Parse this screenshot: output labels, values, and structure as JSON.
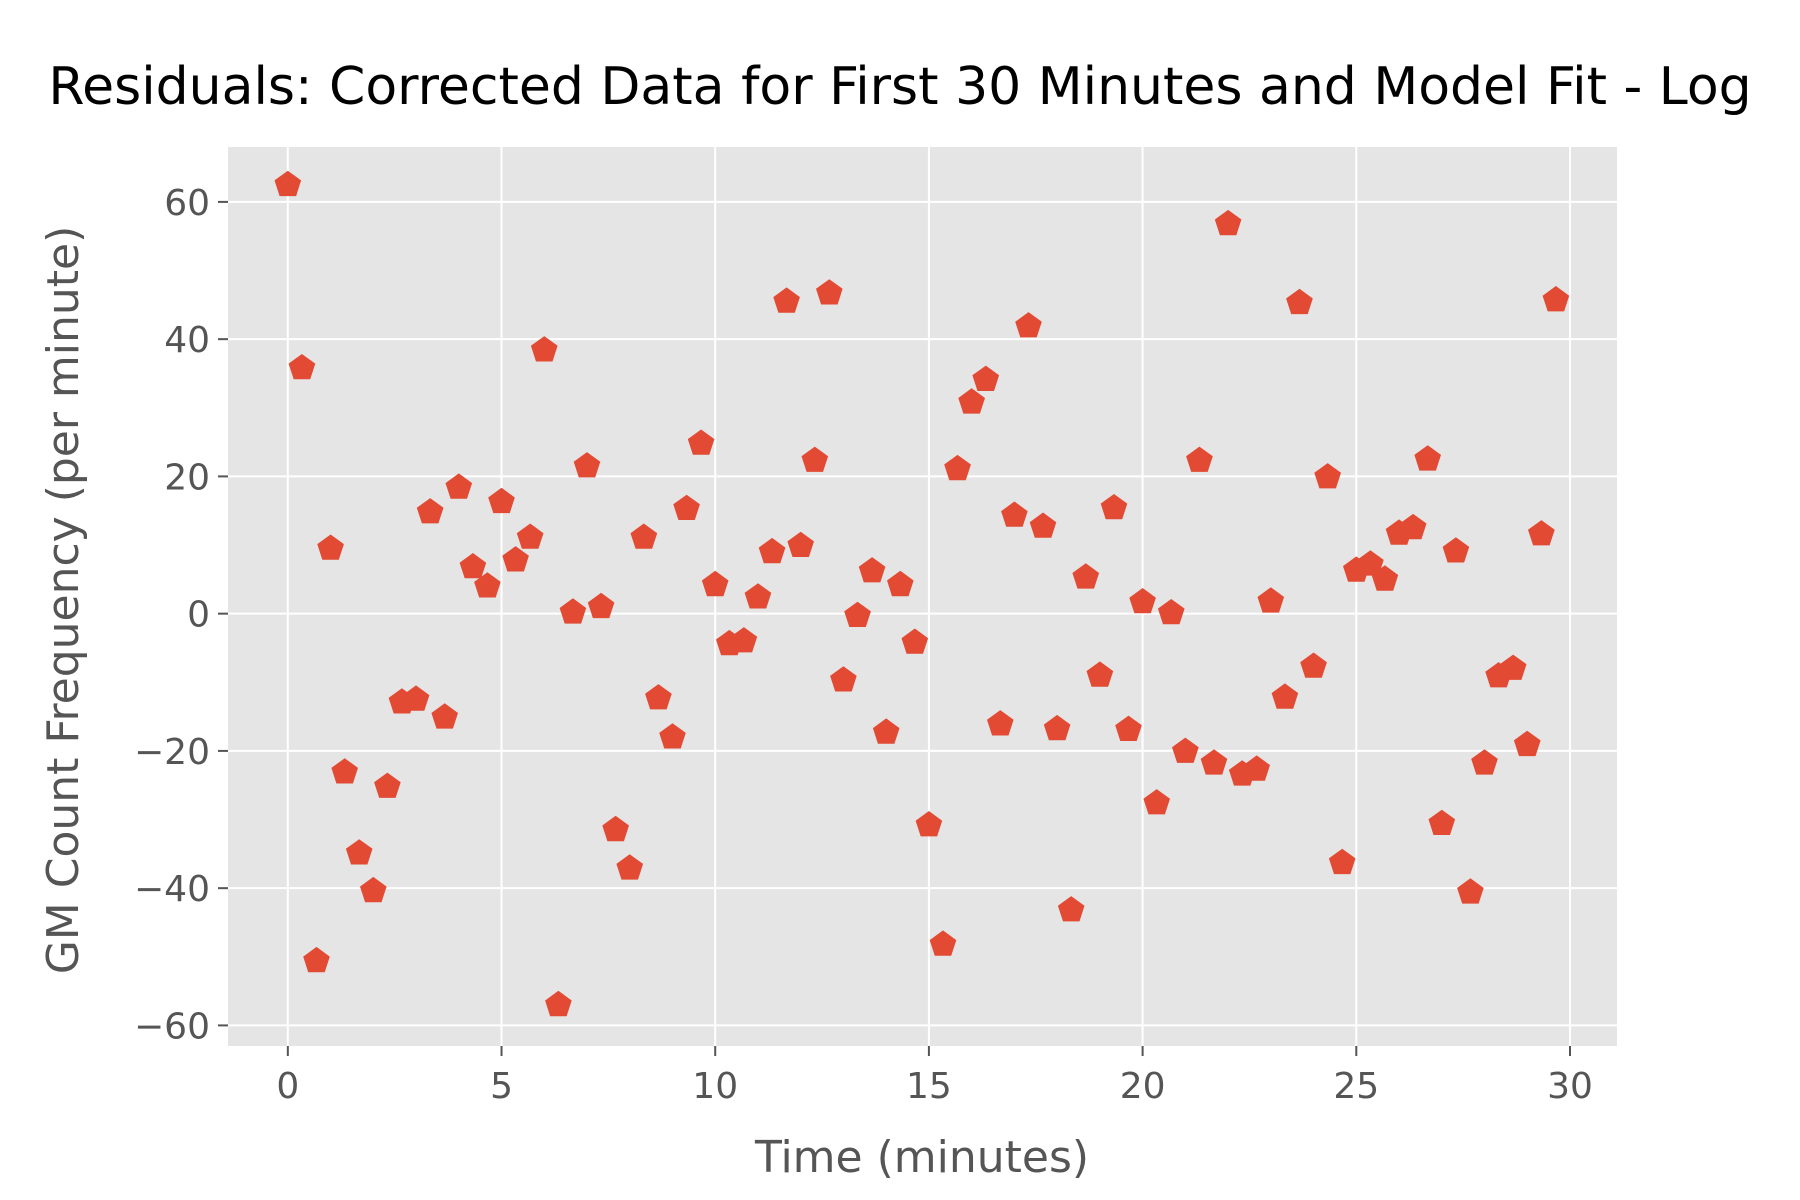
{
  "chart_data": {
    "type": "scatter",
    "title": "Residuals: Corrected Data for First 30 Minutes and Model Fit - Log",
    "xlabel": "Time (minutes)",
    "ylabel": "GM Count Frequency (per minute)",
    "xlim": [
      -1.4,
      31.1
    ],
    "ylim": [
      -63,
      68
    ],
    "x_ticks": [
      0,
      5,
      10,
      15,
      20,
      25,
      30
    ],
    "x_tick_labels": [
      "0",
      "5",
      "10",
      "15",
      "20",
      "25",
      "30"
    ],
    "y_ticks": [
      -60,
      -40,
      -20,
      0,
      20,
      40,
      60
    ],
    "y_tick_labels": [
      "−60",
      "−40",
      "−20",
      "0",
      "20",
      "40",
      "60"
    ],
    "grid": true,
    "marker": "pentagon",
    "colors": {
      "marker": "#E24A33",
      "plot_background": "#E5E5E5",
      "grid": "#FFFFFF",
      "figure_background": "#FFFFFF"
    },
    "points": [
      [
        0.0,
        62.5
      ],
      [
        0.33,
        35.8
      ],
      [
        0.67,
        -50.6
      ],
      [
        1.0,
        9.5
      ],
      [
        1.33,
        -23.1
      ],
      [
        1.67,
        -34.9
      ],
      [
        2.0,
        -40.4
      ],
      [
        2.33,
        -25.2
      ],
      [
        2.67,
        -12.9
      ],
      [
        3.0,
        -12.5
      ],
      [
        3.33,
        14.8
      ],
      [
        3.67,
        -15.1
      ],
      [
        4.0,
        18.4
      ],
      [
        4.33,
        6.8
      ],
      [
        4.67,
        4.0
      ],
      [
        5.0,
        16.3
      ],
      [
        5.33,
        7.8
      ],
      [
        5.67,
        11.1
      ],
      [
        6.0,
        38.4
      ],
      [
        6.33,
        -57.0
      ],
      [
        6.67,
        0.2
      ],
      [
        7.0,
        21.5
      ],
      [
        7.33,
        1.0
      ],
      [
        7.67,
        -31.5
      ],
      [
        8.0,
        -37.1
      ],
      [
        8.33,
        11.1
      ],
      [
        8.67,
        -12.3
      ],
      [
        9.0,
        -18.0
      ],
      [
        9.33,
        15.3
      ],
      [
        9.67,
        24.8
      ],
      [
        10.0,
        4.2
      ],
      [
        10.33,
        -4.4
      ],
      [
        10.67,
        -4.0
      ],
      [
        11.0,
        2.4
      ],
      [
        11.33,
        9.0
      ],
      [
        11.67,
        45.5
      ],
      [
        12.0,
        9.9
      ],
      [
        12.33,
        22.3
      ],
      [
        12.67,
        46.7
      ],
      [
        13.0,
        -9.7
      ],
      [
        13.33,
        -0.3
      ],
      [
        13.67,
        6.2
      ],
      [
        14.0,
        -17.3
      ],
      [
        14.33,
        4.2
      ],
      [
        14.67,
        -4.2
      ],
      [
        15.0,
        -30.8
      ],
      [
        15.33,
        -48.2
      ],
      [
        15.67,
        21.1
      ],
      [
        16.0,
        30.8
      ],
      [
        16.33,
        34.1
      ],
      [
        16.67,
        -16.1
      ],
      [
        17.0,
        14.3
      ],
      [
        17.33,
        41.9
      ],
      [
        17.67,
        12.7
      ],
      [
        18.0,
        -16.8
      ],
      [
        18.33,
        -43.2
      ],
      [
        18.67,
        5.3
      ],
      [
        19.0,
        -9.0
      ],
      [
        19.33,
        15.4
      ],
      [
        19.67,
        -16.9
      ],
      [
        20.0,
        1.7
      ],
      [
        20.33,
        -27.6
      ],
      [
        20.67,
        0.1
      ],
      [
        21.0,
        -20.1
      ],
      [
        21.33,
        22.3
      ],
      [
        21.67,
        -21.8
      ],
      [
        22.0,
        56.8
      ],
      [
        22.33,
        -23.4
      ],
      [
        22.67,
        -22.7
      ],
      [
        23.0,
        1.8
      ],
      [
        23.33,
        -12.2
      ],
      [
        23.67,
        45.3
      ],
      [
        24.0,
        -7.7
      ],
      [
        24.33,
        19.9
      ],
      [
        24.67,
        -36.3
      ],
      [
        25.0,
        6.3
      ],
      [
        25.33,
        7.2
      ],
      [
        25.67,
        5.0
      ],
      [
        26.0,
        11.7
      ],
      [
        26.33,
        12.5
      ],
      [
        26.67,
        22.5
      ],
      [
        27.0,
        -30.6
      ],
      [
        27.33,
        9.1
      ],
      [
        27.67,
        -40.6
      ],
      [
        28.0,
        -21.8
      ],
      [
        28.33,
        -9.1
      ],
      [
        28.67,
        -8.0
      ],
      [
        29.0,
        -19.1
      ],
      [
        29.33,
        11.6
      ],
      [
        29.67,
        45.7
      ]
    ]
  }
}
